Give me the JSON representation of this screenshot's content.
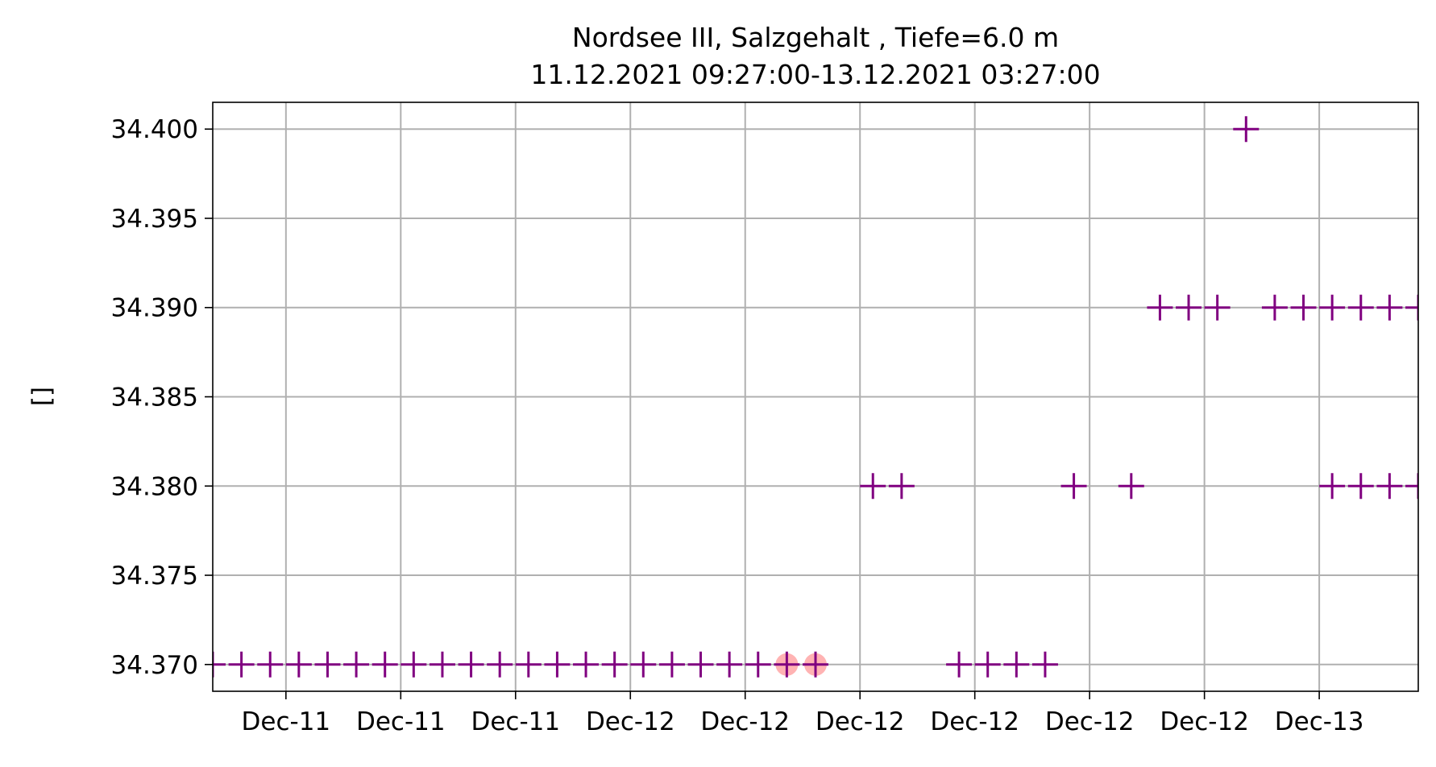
{
  "chart_data": {
    "type": "scatter",
    "title": "Nordsee III, Salzgehalt , Tiefe=6.0 m",
    "subtitle": "11.12.2021 09:27:00-13.12.2021 03:27:00",
    "xlabel": "",
    "ylabel": "[]",
    "x_tick_labels": [
      "Dec-11",
      "Dec-11",
      "Dec-11",
      "Dec-12",
      "Dec-12",
      "Dec-12",
      "Dec-12",
      "Dec-12",
      "Dec-12",
      "Dec-13"
    ],
    "x_ticks_hours": [
      14,
      18,
      22,
      26,
      30,
      34,
      38,
      42,
      46,
      50
    ],
    "xlim_hours": [
      11.45,
      53.45
    ],
    "x_unit": "hours from 11.12.2021 00:00",
    "y_tick_labels": [
      "34.370",
      "34.375",
      "34.380",
      "34.385",
      "34.390",
      "34.395",
      "34.400"
    ],
    "y_ticks": [
      34.37,
      34.375,
      34.38,
      34.385,
      34.39,
      34.395,
      34.4
    ],
    "ylim": [
      34.3685,
      34.4015
    ],
    "grid": true,
    "marker_color": "#800080",
    "highlight_color": "#ff9999",
    "series": [
      {
        "marker": "+",
        "x_hours": [
          11.45,
          12.45,
          13.45,
          14.45,
          15.45,
          16.45,
          17.45,
          18.45,
          19.45,
          20.45,
          21.45,
          22.45,
          23.45,
          24.45,
          25.45,
          26.45,
          27.45,
          28.45,
          29.45,
          30.45,
          31.45,
          32.45,
          34.45,
          35.45,
          37.45,
          38.45,
          39.45,
          40.45,
          41.45,
          43.45,
          44.45,
          45.45,
          46.45,
          47.45,
          48.45,
          49.45,
          50.45,
          51.45,
          52.45,
          53.45
        ],
        "values": [
          34.37,
          34.37,
          34.37,
          34.37,
          34.37,
          34.37,
          34.37,
          34.37,
          34.37,
          34.37,
          34.37,
          34.37,
          34.37,
          34.37,
          34.37,
          34.37,
          34.37,
          34.37,
          34.37,
          34.37,
          34.37,
          34.37,
          34.38,
          34.38,
          34.37,
          34.37,
          34.37,
          34.37,
          34.38,
          34.38,
          34.39,
          34.39,
          34.39,
          34.4,
          34.39,
          34.39,
          34.39,
          34.38,
          34.38,
          34.38
        ]
      },
      {
        "marker": "+",
        "x_hours": [
          50.45,
          51.45,
          52.45,
          53.45
        ],
        "values": [
          34.38,
          34.39,
          34.39,
          34.39
        ]
      },
      {
        "marker": "circle",
        "x_hours": [
          31.45,
          32.45
        ],
        "values": [
          34.37,
          34.37
        ]
      }
    ]
  }
}
